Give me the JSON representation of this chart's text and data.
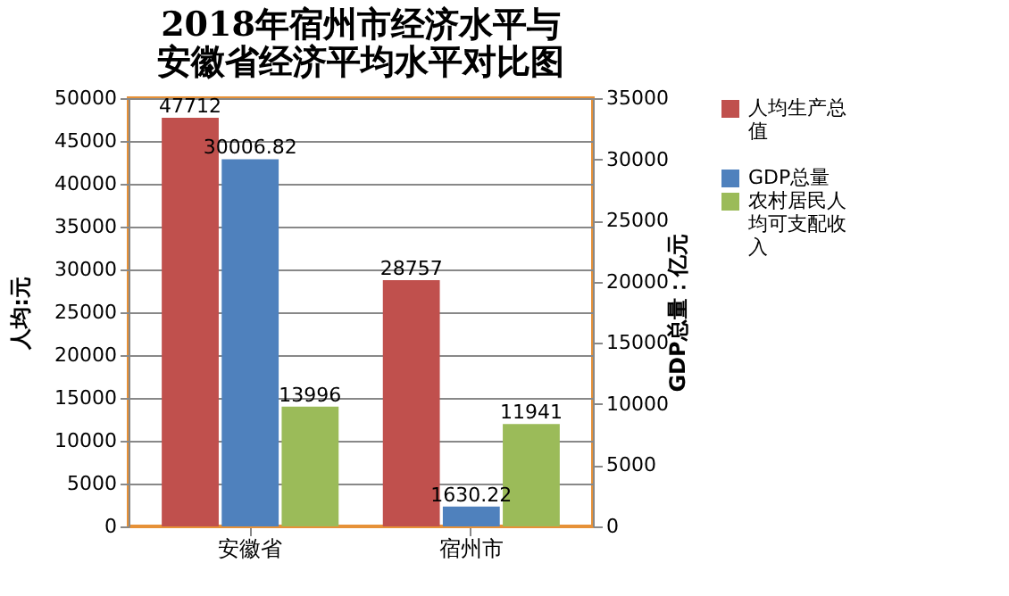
{
  "chart_data": {
    "type": "bar",
    "title": "2018年宿州市经济水平与安徽省经济平均水平对比图",
    "ylabel": "人均:元",
    "y2label": "GDP总量：亿元",
    "categories": [
      "安徽省",
      "宿州市"
    ],
    "series": [
      {
        "name": "人均生产总值",
        "color": "#c0504d",
        "values": [
          47712,
          28757
        ]
      },
      {
        "name": "GDP总量",
        "color": "#4f81bd",
        "values": [
          30006.82,
          1630.22
        ],
        "axis": "y2"
      },
      {
        "name": "农村居民人均可支配收入",
        "color": "#9bbb59",
        "values": [
          13996,
          11941
        ]
      }
    ],
    "ylim": [
      0,
      50000
    ],
    "yticks": [
      0,
      5000,
      10000,
      15000,
      20000,
      25000,
      30000,
      35000,
      40000,
      45000,
      50000
    ],
    "y2lim": [
      0,
      35000
    ],
    "y2ticks": [
      0,
      5000,
      10000,
      15000,
      20000,
      25000,
      30000,
      35000
    ],
    "data_labels": true,
    "grid": "y",
    "legend": "right"
  }
}
